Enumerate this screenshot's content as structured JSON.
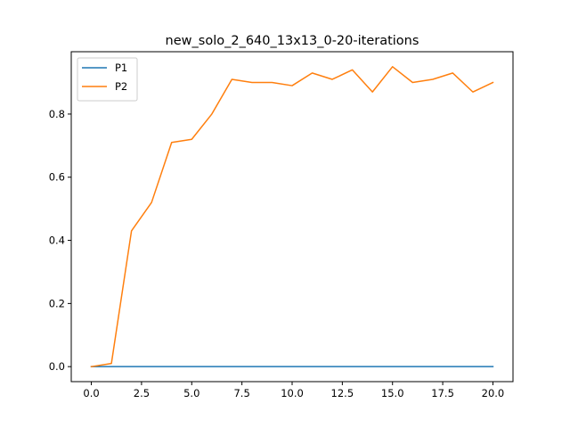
{
  "chart_data": {
    "type": "line",
    "title": "new_solo_2_640_13x13_0-20-iterations",
    "xlabel": "",
    "ylabel": "",
    "x": [
      0,
      1,
      2,
      3,
      4,
      5,
      6,
      7,
      8,
      9,
      10,
      11,
      12,
      13,
      14,
      15,
      16,
      17,
      18,
      19,
      20
    ],
    "xlim": [
      -1.0,
      21.0
    ],
    "ylim": [
      -0.0475,
      0.9975
    ],
    "xticks": [
      0.0,
      2.5,
      5.0,
      7.5,
      10.0,
      12.5,
      15.0,
      17.5,
      20.0
    ],
    "xtick_labels": [
      "0.0",
      "2.5",
      "5.0",
      "7.5",
      "10.0",
      "12.5",
      "15.0",
      "17.5",
      "20.0"
    ],
    "yticks": [
      0.0,
      0.2,
      0.4,
      0.6,
      0.8
    ],
    "ytick_labels": [
      "0.0",
      "0.2",
      "0.4",
      "0.6",
      "0.8"
    ],
    "grid": false,
    "legend_position": "top-left",
    "series": [
      {
        "name": "P1",
        "color": "#1f77b4",
        "values": [
          0,
          0,
          0,
          0,
          0,
          0,
          0,
          0,
          0,
          0,
          0,
          0,
          0,
          0,
          0,
          0,
          0,
          0,
          0,
          0,
          0
        ]
      },
      {
        "name": "P2",
        "color": "#ff7f0e",
        "values": [
          0,
          0.01,
          0.43,
          0.52,
          0.71,
          0.72,
          0.8,
          0.91,
          0.9,
          0.9,
          0.89,
          0.93,
          0.91,
          0.94,
          0.87,
          0.95,
          0.9,
          0.91,
          0.93,
          0.87,
          0.9
        ]
      }
    ]
  }
}
